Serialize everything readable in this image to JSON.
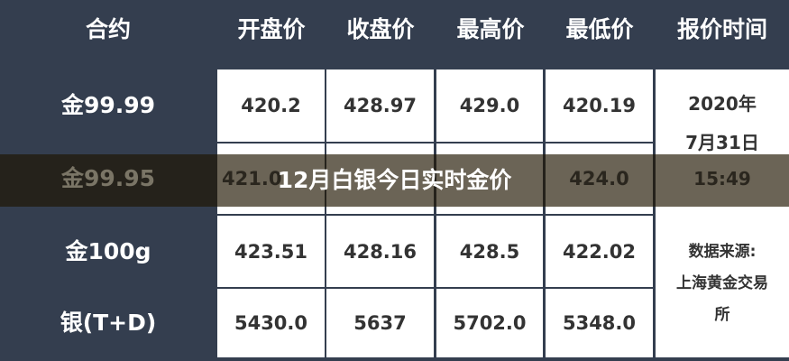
{
  "headers": [
    "合约",
    "开盘价",
    "收盘价",
    "最高价",
    "最低价",
    "报价时间"
  ],
  "rows": [
    {
      "name": "金99.99",
      "values": [
        "420.2",
        "428.97",
        "429.0",
        "420.19"
      ]
    },
    {
      "name": "金99.95",
      "values": [
        "421.0",
        "",
        "",
        "424.0"
      ]
    },
    {
      "name": "金100g",
      "values": [
        "423.51",
        "428.16",
        "428.5",
        "422.02"
      ]
    },
    {
      "name": "银(T+D)",
      "values": [
        "5430.0",
        "5637",
        "5702.0",
        "5348.0"
      ]
    }
  ],
  "time": {
    "line1": "2020年",
    "line2": "7月31日",
    "line3": "15:49"
  },
  "source": {
    "line1": "数据来源:",
    "line2": "上海黄金交易",
    "line3": "所"
  },
  "banner": "12月白银今日实时金价"
}
